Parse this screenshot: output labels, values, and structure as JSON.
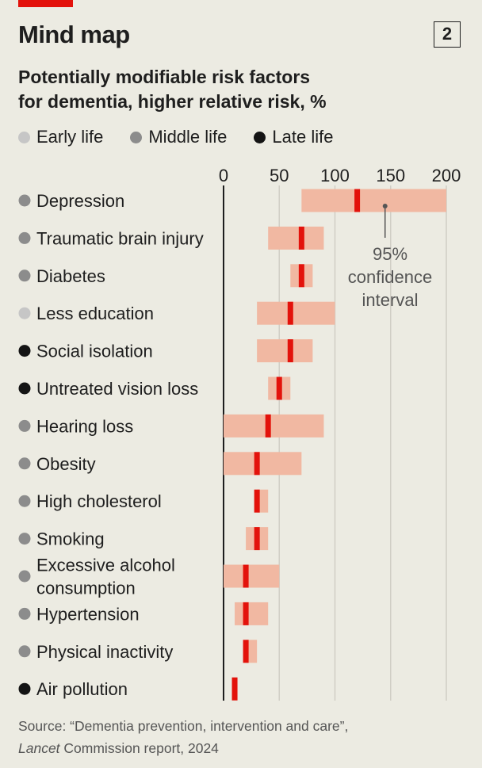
{
  "header": {
    "title": "Mind map",
    "chart_number": "2",
    "subtitle_line1": "Potentially modifiable risk factors",
    "subtitle_line2": "for dementia, higher relative risk, %"
  },
  "legend": [
    {
      "label": "Early life",
      "color": "#c6c6c6"
    },
    {
      "label": "Middle life",
      "color": "#8c8c8c"
    },
    {
      "label": "Late life",
      "color": "#141414"
    }
  ],
  "annotation": [
    "95%",
    "confidence",
    "interval"
  ],
  "source": {
    "prefix": "Source: “Dementia prevention, intervention and care”,",
    "publication": "Lancet",
    "suffix": " Commission report, 2024"
  },
  "colors": {
    "ci_band": "#f1b8a2",
    "point": "#e3120b",
    "grid": "#d0cec5",
    "axis": "#1e1e1e"
  },
  "chart_data": {
    "type": "dot-with-interval",
    "title": "Potentially modifiable risk factors for dementia, higher relative risk, %",
    "xlim": [
      0,
      200
    ],
    "x_ticks": [
      0,
      50,
      100,
      150,
      200
    ],
    "legend_position": "top",
    "grid": true,
    "rows": [
      {
        "label": "Depression",
        "life_stage": "Middle life",
        "value": 120,
        "ci": [
          70,
          200
        ]
      },
      {
        "label": "Traumatic brain injury",
        "life_stage": "Middle life",
        "value": 70,
        "ci": [
          40,
          90
        ]
      },
      {
        "label": "Diabetes",
        "life_stage": "Middle life",
        "value": 70,
        "ci": [
          60,
          80
        ]
      },
      {
        "label": "Less education",
        "life_stage": "Early life",
        "value": 60,
        "ci": [
          30,
          100
        ]
      },
      {
        "label": "Social isolation",
        "life_stage": "Late life",
        "value": 60,
        "ci": [
          30,
          80
        ]
      },
      {
        "label": "Untreated vision loss",
        "life_stage": "Late life",
        "value": 50,
        "ci": [
          40,
          60
        ]
      },
      {
        "label": "Hearing loss",
        "life_stage": "Middle life",
        "value": 40,
        "ci": [
          0,
          90
        ]
      },
      {
        "label": "Obesity",
        "life_stage": "Middle life",
        "value": 30,
        "ci": [
          0,
          70
        ]
      },
      {
        "label": "High cholesterol",
        "life_stage": "Middle life",
        "value": 30,
        "ci": [
          30,
          40
        ]
      },
      {
        "label": "Smoking",
        "life_stage": "Middle life",
        "value": 30,
        "ci": [
          20,
          40
        ]
      },
      {
        "label": "Excessive alcohol consumption",
        "label_lines": [
          "Excessive alcohol",
          "consumption"
        ],
        "life_stage": "Middle life",
        "value": 20,
        "ci": [
          0,
          50
        ]
      },
      {
        "label": "Hypertension",
        "life_stage": "Middle life",
        "value": 20,
        "ci": [
          10,
          40
        ]
      },
      {
        "label": "Physical inactivity",
        "life_stage": "Middle life",
        "value": 20,
        "ci": [
          20,
          30
        ]
      },
      {
        "label": "Air pollution",
        "life_stage": "Late life",
        "value": 10,
        "ci": [
          10,
          10
        ]
      }
    ]
  }
}
